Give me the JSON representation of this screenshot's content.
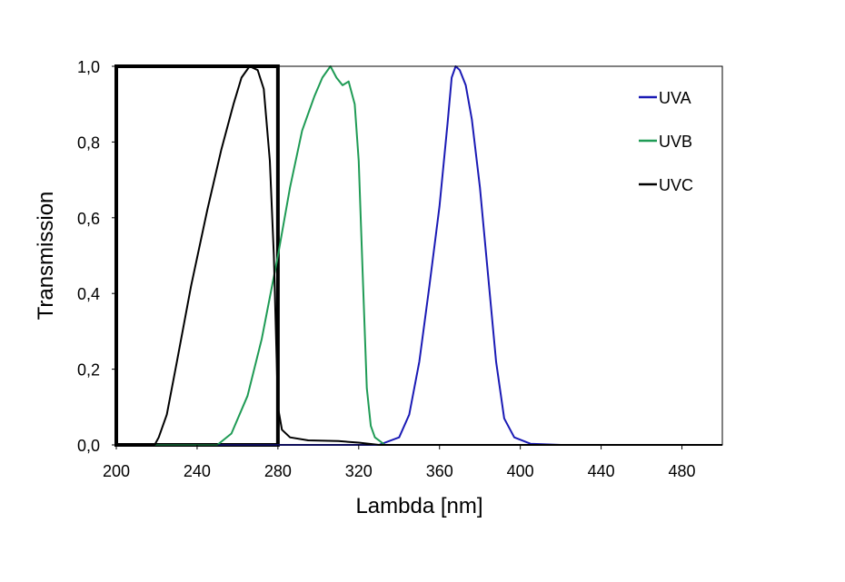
{
  "chart_data": {
    "type": "line",
    "xlabel": "Lambda [nm]",
    "ylabel": "Transmission",
    "xlim": [
      200,
      500
    ],
    "ylim": [
      0,
      1
    ],
    "x_ticks": [
      200,
      240,
      280,
      320,
      360,
      400,
      440,
      480
    ],
    "x_tick_labels": [
      "200",
      "240",
      "280",
      "320",
      "360",
      "400",
      "440",
      "480"
    ],
    "y_ticks": [
      0,
      0.2,
      0.4,
      0.6,
      0.8,
      1.0
    ],
    "y_tick_labels": [
      "0,0",
      "0,2",
      "0,4",
      "0,6",
      "0,8",
      "1,0"
    ],
    "grid": false,
    "legend_position": "top-right",
    "band": {
      "from": 200,
      "to": 280,
      "color": "#000000"
    },
    "series": [
      {
        "name": "UVA",
        "color": "#1a1ab5",
        "points": [
          [
            200,
            0
          ],
          [
            330,
            0
          ],
          [
            340,
            0.02
          ],
          [
            345,
            0.08
          ],
          [
            350,
            0.22
          ],
          [
            355,
            0.42
          ],
          [
            360,
            0.63
          ],
          [
            364,
            0.85
          ],
          [
            366,
            0.97
          ],
          [
            368,
            1.0
          ],
          [
            370,
            0.99
          ],
          [
            373,
            0.95
          ],
          [
            376,
            0.86
          ],
          [
            380,
            0.68
          ],
          [
            384,
            0.45
          ],
          [
            388,
            0.22
          ],
          [
            392,
            0.07
          ],
          [
            397,
            0.02
          ],
          [
            405,
            0.003
          ],
          [
            420,
            0
          ],
          [
            500,
            0
          ]
        ]
      },
      {
        "name": "UVB",
        "color": "#1f9b55",
        "points": [
          [
            200,
            0
          ],
          [
            250,
            0
          ],
          [
            257,
            0.03
          ],
          [
            265,
            0.13
          ],
          [
            272,
            0.28
          ],
          [
            280,
            0.5
          ],
          [
            286,
            0.68
          ],
          [
            292,
            0.83
          ],
          [
            298,
            0.92
          ],
          [
            302,
            0.97
          ],
          [
            306,
            1.0
          ],
          [
            309,
            0.97
          ],
          [
            312,
            0.95
          ],
          [
            315,
            0.96
          ],
          [
            318,
            0.9
          ],
          [
            320,
            0.75
          ],
          [
            322,
            0.45
          ],
          [
            324,
            0.15
          ],
          [
            326,
            0.05
          ],
          [
            328,
            0.02
          ],
          [
            333,
            0
          ],
          [
            500,
            0
          ]
        ]
      },
      {
        "name": "UVC",
        "color": "#000000",
        "points": [
          [
            200,
            0
          ],
          [
            219,
            0
          ],
          [
            221,
            0.02
          ],
          [
            225,
            0.08
          ],
          [
            230,
            0.22
          ],
          [
            237,
            0.42
          ],
          [
            245,
            0.62
          ],
          [
            252,
            0.78
          ],
          [
            258,
            0.9
          ],
          [
            262,
            0.97
          ],
          [
            266,
            1.0
          ],
          [
            270,
            0.99
          ],
          [
            273,
            0.94
          ],
          [
            276,
            0.75
          ],
          [
            278,
            0.5
          ],
          [
            280,
            0.1
          ],
          [
            282,
            0.04
          ],
          [
            286,
            0.02
          ],
          [
            295,
            0.012
          ],
          [
            310,
            0.01
          ],
          [
            320,
            0.006
          ],
          [
            330,
            0
          ],
          [
            500,
            0
          ]
        ]
      }
    ]
  }
}
